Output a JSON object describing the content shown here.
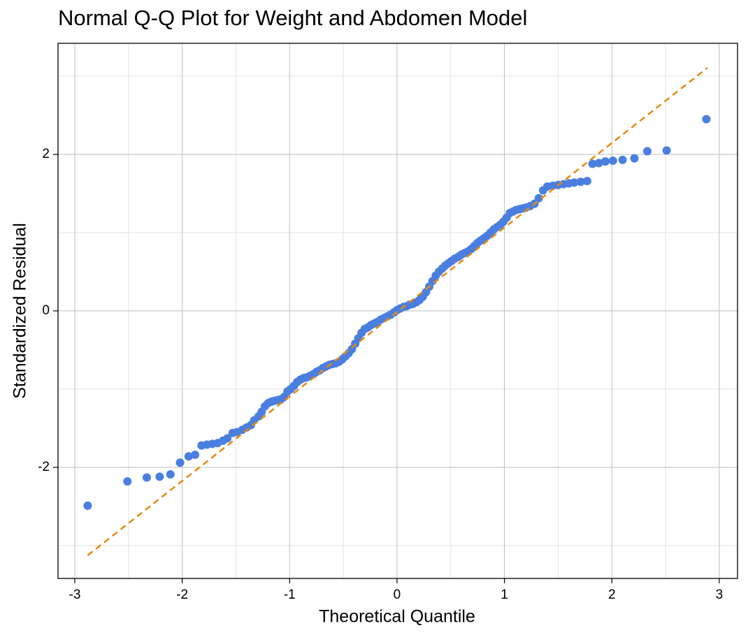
{
  "chart_data": {
    "type": "scatter",
    "title": "Normal Q-Q Plot for Weight and Abdomen Model",
    "xlabel": "Theoretical Quantile",
    "ylabel": "Standardized Residual",
    "xlim": [
      -3.156,
      3.17
    ],
    "ylim": [
      -3.42,
      3.42
    ],
    "xticks": [
      -3,
      -2,
      -1,
      0,
      1,
      2,
      3
    ],
    "yticks": [
      -2,
      0,
      2
    ],
    "grid": true,
    "series": [
      {
        "color": "#4a7fe0",
        "marker": "point",
        "x": [
          -2.88,
          -2.51,
          -2.33,
          -2.21,
          -2.11,
          -2.02,
          -1.94,
          -1.88,
          -1.82,
          -1.77,
          -1.72,
          -1.67,
          -1.62,
          -1.58,
          -1.53,
          -1.49,
          -1.44,
          -1.4,
          -1.36,
          -1.33,
          -1.29,
          -1.26,
          -1.23,
          -1.2,
          -1.17,
          -1.14,
          -1.11,
          -1.08,
          -1.05,
          -1.02,
          -0.99,
          -0.96,
          -0.93,
          -0.9,
          -0.87,
          -0.84,
          -0.81,
          -0.78,
          -0.75,
          -0.72,
          -0.69,
          -0.66,
          -0.63,
          -0.6,
          -0.57,
          -0.54,
          -0.51,
          -0.48,
          -0.45,
          -0.42,
          -0.39,
          -0.36,
          -0.33,
          -0.3,
          -0.27,
          -0.24,
          -0.21,
          -0.18,
          -0.15,
          -0.12,
          -0.09,
          -0.06,
          -0.03,
          0.0,
          0.03,
          0.06,
          0.09,
          0.12,
          0.15,
          0.18,
          0.21,
          0.24,
          0.27,
          0.3,
          0.33,
          0.36,
          0.39,
          0.42,
          0.45,
          0.48,
          0.51,
          0.54,
          0.57,
          0.6,
          0.63,
          0.66,
          0.69,
          0.72,
          0.75,
          0.78,
          0.81,
          0.84,
          0.87,
          0.9,
          0.93,
          0.96,
          0.99,
          1.02,
          1.05,
          1.08,
          1.11,
          1.14,
          1.17,
          1.2,
          1.24,
          1.28,
          1.32,
          1.36,
          1.4,
          1.45,
          1.5,
          1.55,
          1.6,
          1.65,
          1.71,
          1.77,
          1.82,
          1.88,
          1.94,
          2.01,
          2.1,
          2.21,
          2.33,
          2.51,
          2.88
        ],
        "y": [
          -2.49,
          -2.18,
          -2.13,
          -2.12,
          -2.09,
          -1.94,
          -1.86,
          -1.84,
          -1.72,
          -1.71,
          -1.7,
          -1.69,
          -1.66,
          -1.63,
          -1.56,
          -1.55,
          -1.52,
          -1.49,
          -1.46,
          -1.4,
          -1.35,
          -1.29,
          -1.22,
          -1.18,
          -1.16,
          -1.15,
          -1.14,
          -1.13,
          -1.1,
          -1.03,
          -1.0,
          -0.96,
          -0.91,
          -0.88,
          -0.86,
          -0.85,
          -0.83,
          -0.81,
          -0.78,
          -0.76,
          -0.73,
          -0.71,
          -0.69,
          -0.68,
          -0.67,
          -0.65,
          -0.62,
          -0.58,
          -0.54,
          -0.49,
          -0.42,
          -0.35,
          -0.28,
          -0.23,
          -0.21,
          -0.18,
          -0.16,
          -0.14,
          -0.11,
          -0.09,
          -0.07,
          -0.05,
          -0.02,
          0.01,
          0.03,
          0.05,
          0.06,
          0.08,
          0.09,
          0.11,
          0.14,
          0.18,
          0.24,
          0.31,
          0.38,
          0.45,
          0.5,
          0.54,
          0.58,
          0.61,
          0.64,
          0.67,
          0.69,
          0.72,
          0.74,
          0.76,
          0.79,
          0.83,
          0.87,
          0.9,
          0.93,
          0.96,
          1.0,
          1.04,
          1.07,
          1.1,
          1.14,
          1.19,
          1.25,
          1.27,
          1.29,
          1.3,
          1.31,
          1.32,
          1.34,
          1.37,
          1.44,
          1.54,
          1.59,
          1.6,
          1.61,
          1.62,
          1.63,
          1.64,
          1.65,
          1.66,
          1.88,
          1.89,
          1.91,
          1.92,
          1.93,
          1.95,
          2.04,
          2.05,
          2.45
        ]
      },
      {
        "color": "#e8890c",
        "marker": "dashed-line",
        "x": [
          -2.88,
          2.89
        ],
        "y": [
          -3.125,
          3.107
        ]
      }
    ]
  }
}
